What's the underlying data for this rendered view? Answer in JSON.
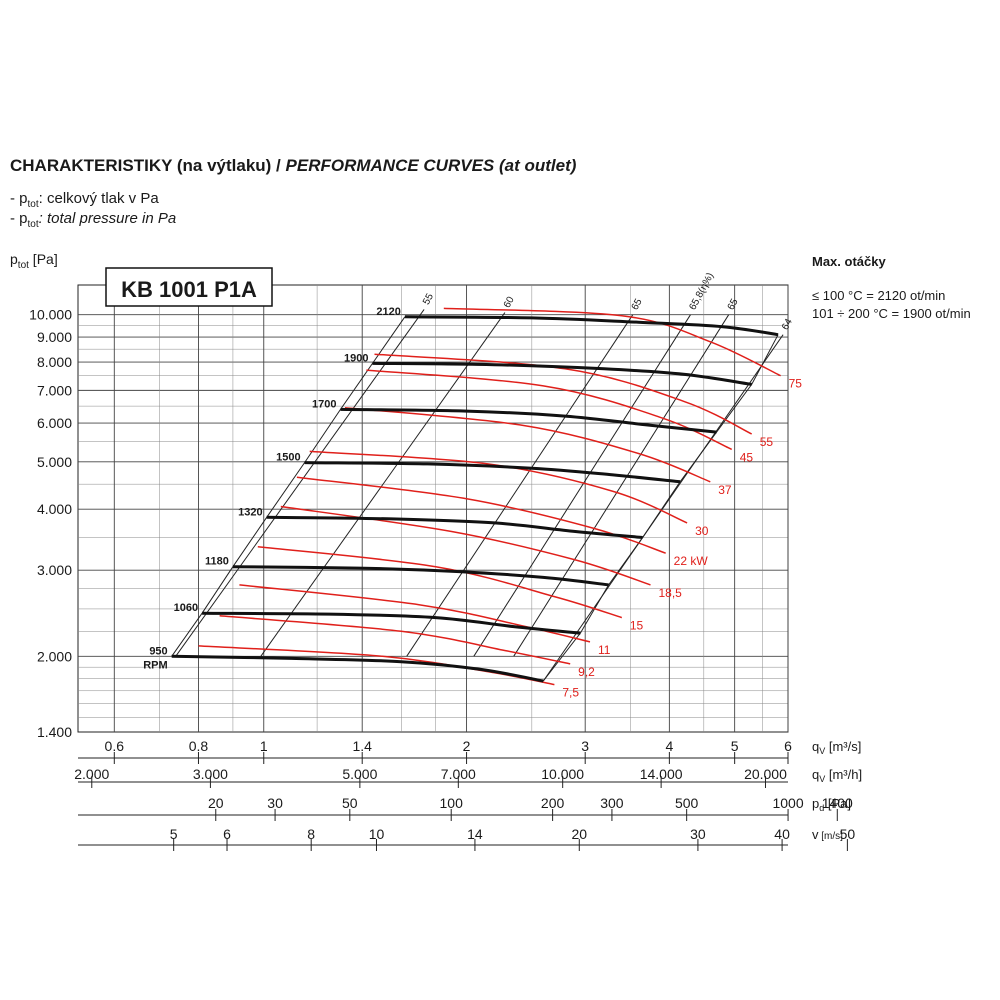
{
  "header": {
    "title_cz": "CHARAKTERISTIKY (na výtlaku) /",
    "title_en": "PERFORMANCE CURVES (at outlet)",
    "note1_pre": "- p",
    "note1_sub": "tot",
    "note1_text": ": celkový tlak v Pa",
    "note2_pre": "- p",
    "note2_sub": "tot",
    "note2_text": ": total pressure in Pa"
  },
  "side": {
    "title": "Max. otáčky",
    "line1": "≤ 100 °C = 2120 ot/min",
    "line2": "101 ÷ 200 °C = 1900 ot/min"
  },
  "chart_data": {
    "type": "line",
    "model": "KB 1001 P1A",
    "ylabel": "p_tot [Pa]",
    "ylabel_main": "p",
    "ylabel_sub": "tot",
    "ylabel_unit": "[Pa]",
    "yscale": "log",
    "ylim": [
      1400,
      11500
    ],
    "yticks": [
      {
        "v": 10000,
        "label": "10.000"
      },
      {
        "v": 9000,
        "label": "9.000"
      },
      {
        "v": 8000,
        "label": "8.000"
      },
      {
        "v": 7000,
        "label": "7.000"
      },
      {
        "v": 6000,
        "label": "6.000"
      },
      {
        "v": 5000,
        "label": "5.000"
      },
      {
        "v": 4000,
        "label": "4.000"
      },
      {
        "v": 3000,
        "label": "3.000"
      },
      {
        "v": 2000,
        "label": "2.000"
      },
      {
        "v": 1400,
        "label": "1.400"
      }
    ],
    "xscale": "log",
    "xlabel": "q_v [m³/s]",
    "xlim": [
      0.53,
      6.0
    ],
    "axes": {
      "qv_s": {
        "label": "q",
        "sub": "V",
        "unit": "[m³/s]",
        "ticks": [
          {
            "v": 0.6,
            "label": "0.6"
          },
          {
            "v": 0.8,
            "label": "0.8"
          },
          {
            "v": 1,
            "label": "1"
          },
          {
            "v": 1.4,
            "label": "1.4"
          },
          {
            "v": 2,
            "label": "2"
          },
          {
            "v": 3,
            "label": "3"
          },
          {
            "v": 4,
            "label": "4"
          },
          {
            "v": 5,
            "label": "5"
          },
          {
            "v": 6,
            "label": "6"
          }
        ]
      },
      "qv_h": {
        "label": "q",
        "sub": "V",
        "unit": "[m³/h]",
        "ticks": [
          {
            "v": 2000,
            "label": "2.000"
          },
          {
            "v": 3000,
            "label": "3.000"
          },
          {
            "v": 5000,
            "label": "5.000"
          },
          {
            "v": 7000,
            "label": "7.000"
          },
          {
            "v": 10000,
            "label": "10.000"
          },
          {
            "v": 14000,
            "label": "14.000"
          },
          {
            "v": 20000,
            "label": "20.000"
          }
        ]
      },
      "pd": {
        "label": "p",
        "sub": "d",
        "unit": "[Pa]",
        "ticks": [
          {
            "v": 20,
            "label": "20"
          },
          {
            "v": 30,
            "label": "30"
          },
          {
            "v": 50,
            "label": "50"
          },
          {
            "v": 100,
            "label": "100"
          },
          {
            "v": 200,
            "label": "200"
          },
          {
            "v": 300,
            "label": "300"
          },
          {
            "v": 500,
            "label": "500"
          },
          {
            "v": 1000,
            "label": "1000"
          },
          {
            "v": 1400,
            "label": "1400"
          }
        ]
      },
      "v": {
        "label": "v",
        "unit": "[m/s]",
        "ticks": [
          {
            "v": 5,
            "label": "5"
          },
          {
            "v": 6,
            "label": "6"
          },
          {
            "v": 8,
            "label": "8"
          },
          {
            "v": 10,
            "label": "10"
          },
          {
            "v": 14,
            "label": "14"
          },
          {
            "v": 20,
            "label": "20"
          },
          {
            "v": 30,
            "label": "30"
          },
          {
            "v": 40,
            "label": "40"
          },
          {
            "v": 50,
            "label": "50"
          }
        ]
      }
    },
    "speed_curves": [
      {
        "rpm": "2120",
        "points": [
          [
            1.62,
            9900
          ],
          [
            2.5,
            9850
          ],
          [
            3.6,
            9650
          ],
          [
            4.8,
            9450
          ],
          [
            5.8,
            9100
          ]
        ]
      },
      {
        "rpm": "1900",
        "points": [
          [
            1.45,
            7950
          ],
          [
            2.2,
            7900
          ],
          [
            3.2,
            7750
          ],
          [
            4.2,
            7550
          ],
          [
            5.3,
            7200
          ]
        ]
      },
      {
        "rpm": "1700",
        "points": [
          [
            1.3,
            6400
          ],
          [
            2.0,
            6350
          ],
          [
            2.8,
            6200
          ],
          [
            3.7,
            5950
          ],
          [
            4.7,
            5750
          ]
        ]
      },
      {
        "rpm": "1500",
        "points": [
          [
            1.15,
            4980
          ],
          [
            1.75,
            4950
          ],
          [
            2.5,
            4850
          ],
          [
            3.3,
            4700
          ],
          [
            4.15,
            4550
          ]
        ]
      },
      {
        "rpm": "1320",
        "points": [
          [
            1.01,
            3850
          ],
          [
            1.55,
            3820
          ],
          [
            2.2,
            3750
          ],
          [
            2.9,
            3600
          ],
          [
            3.65,
            3500
          ]
        ]
      },
      {
        "rpm": "1180",
        "points": [
          [
            0.9,
            3050
          ],
          [
            1.38,
            3030
          ],
          [
            1.95,
            2980
          ],
          [
            2.6,
            2900
          ],
          [
            3.25,
            2800
          ]
        ]
      },
      {
        "rpm": "1060",
        "points": [
          [
            0.81,
            2450
          ],
          [
            1.25,
            2440
          ],
          [
            1.8,
            2400
          ],
          [
            2.35,
            2300
          ],
          [
            2.95,
            2230
          ]
        ]
      },
      {
        "rpm": "950",
        "points": [
          [
            0.73,
            2000
          ],
          [
            1.1,
            1980
          ],
          [
            1.6,
            1950
          ],
          [
            2.1,
            1880
          ],
          [
            2.6,
            1780
          ]
        ]
      }
    ],
    "rpm_suffix": "RPM",
    "efficiency_lines": [
      {
        "label": "55",
        "points": [
          [
            0.74,
            2000
          ],
          [
            1.73,
            10250
          ]
        ]
      },
      {
        "label": "60",
        "points": [
          [
            0.99,
            2000
          ],
          [
            2.28,
            10100
          ]
        ]
      },
      {
        "label": "65",
        "points": [
          [
            1.63,
            2000
          ],
          [
            3.53,
            10000
          ]
        ]
      },
      {
        "label": "65,8(η%)",
        "points": [
          [
            2.05,
            2000
          ],
          [
            4.3,
            10000
          ]
        ]
      },
      {
        "label": "65",
        "points": [
          [
            2.35,
            2000
          ],
          [
            4.9,
            10000
          ]
        ]
      },
      {
        "label": "64",
        "points": [
          [
            2.6,
            1780
          ],
          [
            5.9,
            9100
          ]
        ]
      }
    ],
    "power_curves": [
      {
        "label": "7,5",
        "points": [
          [
            0.8,
            2100
          ],
          [
            1.5,
            2000
          ],
          [
            2.2,
            1850
          ],
          [
            2.7,
            1750
          ]
        ]
      },
      {
        "label": "9,2",
        "points": [
          [
            0.86,
            2420
          ],
          [
            1.6,
            2250
          ],
          [
            2.3,
            2050
          ],
          [
            2.85,
            1930
          ]
        ]
      },
      {
        "label": "11",
        "points": [
          [
            0.92,
            2800
          ],
          [
            1.7,
            2550
          ],
          [
            2.45,
            2300
          ],
          [
            3.05,
            2140
          ]
        ]
      },
      {
        "label": "15",
        "points": [
          [
            0.98,
            3350
          ],
          [
            1.8,
            3050
          ],
          [
            2.7,
            2650
          ],
          [
            3.4,
            2400
          ]
        ]
      },
      {
        "label": "18,5",
        "points": [
          [
            1.06,
            4050
          ],
          [
            1.9,
            3600
          ],
          [
            2.9,
            3150
          ],
          [
            3.75,
            2800
          ]
        ]
      },
      {
        "label": "22 kW",
        "points": [
          [
            1.12,
            4650
          ],
          [
            2.0,
            4200
          ],
          [
            3.1,
            3650
          ],
          [
            3.95,
            3250
          ]
        ]
      },
      {
        "label": "30",
        "points": [
          [
            1.17,
            5250
          ],
          [
            2.15,
            4950
          ],
          [
            3.3,
            4350
          ],
          [
            4.25,
            3750
          ]
        ]
      },
      {
        "label": "37",
        "points": [
          [
            1.32,
            6450
          ],
          [
            2.4,
            5950
          ],
          [
            3.6,
            5200
          ],
          [
            4.6,
            4550
          ]
        ]
      },
      {
        "label": "45",
        "points": [
          [
            1.42,
            7700
          ],
          [
            2.6,
            7150
          ],
          [
            3.9,
            6150
          ],
          [
            4.95,
            5300
          ]
        ]
      },
      {
        "label": "55",
        "points": [
          [
            1.46,
            8300
          ],
          [
            2.8,
            7750
          ],
          [
            4.2,
            6650
          ],
          [
            5.3,
            5700
          ]
        ]
      },
      {
        "label": "75",
        "points": [
          [
            1.85,
            10300
          ],
          [
            3.4,
            9950
          ],
          [
            4.6,
            8800
          ],
          [
            5.85,
            7500
          ]
        ]
      }
    ]
  }
}
